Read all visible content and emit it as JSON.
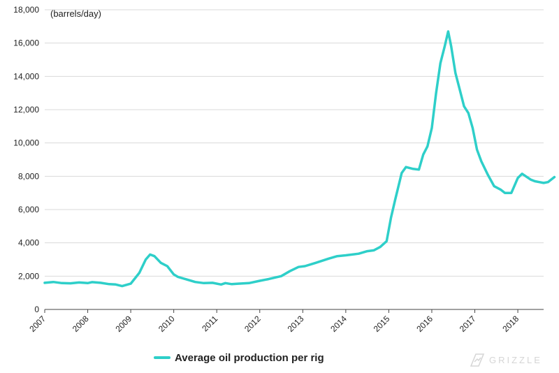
{
  "chart_data": {
    "type": "line",
    "unit_label": "(barrels/day)",
    "ylim": [
      0,
      18000
    ],
    "y_ticks": [
      0,
      2000,
      4000,
      6000,
      8000,
      10000,
      12000,
      14000,
      16000,
      18000
    ],
    "y_tick_labels": [
      "0",
      "2,000",
      "4,000",
      "6,000",
      "8,000",
      "10,000",
      "12,000",
      "14,000",
      "16,000",
      "18,000"
    ],
    "x_range": [
      2007.0,
      2018.6
    ],
    "x_ticks": [
      2007,
      2008,
      2009,
      2010,
      2011,
      2012,
      2013,
      2014,
      2015,
      2016,
      2017,
      2018
    ],
    "x_tick_labels": [
      "2007",
      "2008",
      "2009",
      "2010",
      "2011",
      "2012",
      "2013",
      "2014",
      "2015",
      "2016",
      "2017",
      "2018"
    ],
    "grid": "horizontal",
    "series": [
      {
        "name": "Average oil production per rig",
        "color": "#2ecfc9",
        "points": [
          [
            2007.0,
            1600
          ],
          [
            2007.2,
            1650
          ],
          [
            2007.4,
            1580
          ],
          [
            2007.6,
            1570
          ],
          [
            2007.8,
            1620
          ],
          [
            2008.0,
            1580
          ],
          [
            2008.1,
            1640
          ],
          [
            2008.3,
            1600
          ],
          [
            2008.5,
            1520
          ],
          [
            2008.65,
            1500
          ],
          [
            2008.8,
            1400
          ],
          [
            2009.0,
            1550
          ],
          [
            2009.2,
            2200
          ],
          [
            2009.35,
            3000
          ],
          [
            2009.45,
            3300
          ],
          [
            2009.55,
            3200
          ],
          [
            2009.7,
            2800
          ],
          [
            2009.85,
            2600
          ],
          [
            2010.0,
            2100
          ],
          [
            2010.1,
            1950
          ],
          [
            2010.3,
            1800
          ],
          [
            2010.5,
            1650
          ],
          [
            2010.7,
            1580
          ],
          [
            2010.9,
            1600
          ],
          [
            2011.1,
            1500
          ],
          [
            2011.2,
            1580
          ],
          [
            2011.35,
            1520
          ],
          [
            2011.5,
            1550
          ],
          [
            2011.75,
            1580
          ],
          [
            2012.0,
            1720
          ],
          [
            2012.2,
            1820
          ],
          [
            2012.5,
            2000
          ],
          [
            2012.7,
            2300
          ],
          [
            2012.9,
            2550
          ],
          [
            2013.05,
            2600
          ],
          [
            2013.3,
            2800
          ],
          [
            2013.6,
            3050
          ],
          [
            2013.8,
            3200
          ],
          [
            2014.0,
            3250
          ],
          [
            2014.3,
            3350
          ],
          [
            2014.5,
            3500
          ],
          [
            2014.65,
            3550
          ],
          [
            2014.8,
            3750
          ],
          [
            2014.95,
            4100
          ],
          [
            2015.05,
            5500
          ],
          [
            2015.15,
            6600
          ],
          [
            2015.3,
            8200
          ],
          [
            2015.4,
            8550
          ],
          [
            2015.55,
            8450
          ],
          [
            2015.7,
            8400
          ],
          [
            2015.8,
            9300
          ],
          [
            2015.9,
            9800
          ],
          [
            2016.0,
            10900
          ],
          [
            2016.1,
            13000
          ],
          [
            2016.2,
            14800
          ],
          [
            2016.3,
            15800
          ],
          [
            2016.38,
            16700
          ],
          [
            2016.45,
            15800
          ],
          [
            2016.55,
            14200
          ],
          [
            2016.65,
            13200
          ],
          [
            2016.75,
            12200
          ],
          [
            2016.85,
            11800
          ],
          [
            2016.95,
            10900
          ],
          [
            2017.05,
            9600
          ],
          [
            2017.15,
            8900
          ],
          [
            2017.3,
            8100
          ],
          [
            2017.45,
            7400
          ],
          [
            2017.6,
            7200
          ],
          [
            2017.7,
            7000
          ],
          [
            2017.85,
            7000
          ],
          [
            2018.0,
            7900
          ],
          [
            2018.1,
            8150
          ],
          [
            2018.3,
            7800
          ],
          [
            2018.4,
            7700
          ],
          [
            2018.5,
            7650
          ],
          [
            2018.6,
            7600
          ],
          [
            2018.7,
            7650
          ],
          [
            2018.85,
            7950
          ]
        ]
      }
    ]
  },
  "legend": {
    "label": "Average oil production per rig"
  },
  "watermark": {
    "text": "GRIZZLE"
  }
}
